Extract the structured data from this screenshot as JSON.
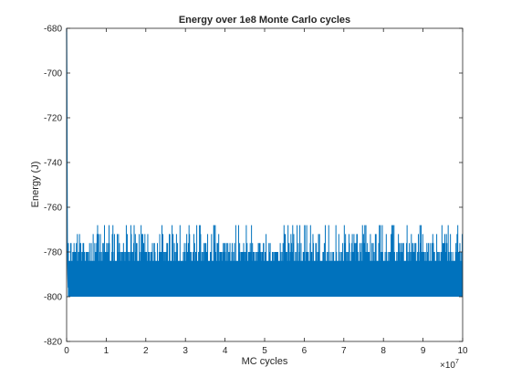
{
  "chart_data": {
    "type": "line",
    "title": "Energy over 1e8 Monte Carlo cycles",
    "xlabel": "MC cycles",
    "ylabel": "Energy (J)",
    "x_exponent_label": "×10",
    "x_exponent_power": "7",
    "xlim": [
      0,
      10
    ],
    "ylim": [
      -820,
      -680
    ],
    "x_ticks": [
      0,
      1,
      2,
      3,
      4,
      5,
      6,
      7,
      8,
      9,
      10
    ],
    "x_tick_labels": [
      "0",
      "1",
      "2",
      "3",
      "4",
      "5",
      "6",
      "7",
      "8",
      "9",
      "10"
    ],
    "y_ticks": [
      -820,
      -800,
      -780,
      -760,
      -740,
      -720,
      -700,
      -680
    ],
    "y_tick_labels": [
      "-820",
      "-800",
      "-780",
      "-760",
      "-740",
      "-720",
      "-700",
      "-680"
    ],
    "grid": false,
    "series": [
      {
        "color": "#0072BD",
        "initial_transient": {
          "x": [
            0,
            0.005,
            0.01,
            0.015,
            0.02,
            0.03,
            0.04
          ],
          "y": [
            -680,
            -700,
            -730,
            -760,
            -780,
            -790,
            -796
          ]
        },
        "steady_state": {
          "x_start": 0.04,
          "x_end": 10,
          "band_min": -800,
          "band_max": -784,
          "dense_band_min": -798,
          "dense_band_max": -786,
          "spike_levels": [
            -780,
            -776,
            -772,
            -768
          ],
          "dip_level": -800
        }
      }
    ]
  }
}
